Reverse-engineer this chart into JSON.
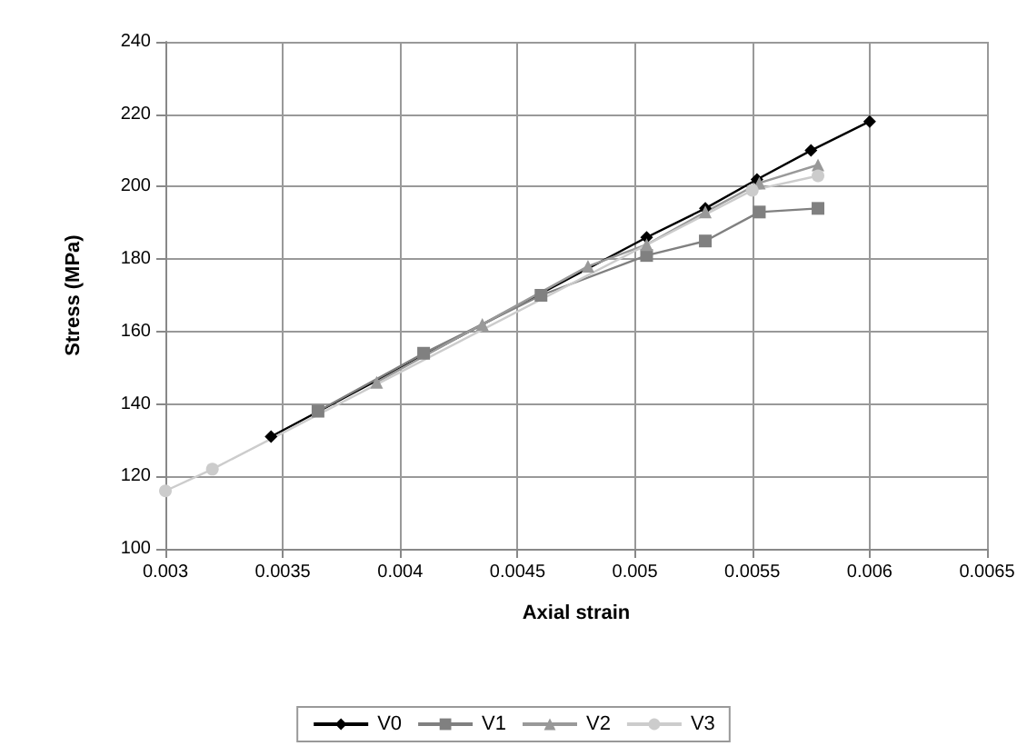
{
  "chart_data": {
    "type": "line",
    "xlabel": "Axial strain",
    "ylabel": "Stress (MPa)",
    "xlim": [
      0.003,
      0.0065
    ],
    "xticks": [
      0.003,
      0.0035,
      0.004,
      0.0045,
      0.005,
      0.0055,
      0.006,
      0.0065
    ],
    "ylim": [
      100,
      240
    ],
    "yticks": [
      100,
      120,
      140,
      160,
      180,
      200,
      220,
      240
    ],
    "grid": true,
    "legend": "bottom",
    "series": [
      {
        "name": "V0",
        "color": "#000000",
        "marker": "diamond",
        "x": [
          0.00345,
          0.00505,
          0.0053,
          0.00552,
          0.00575,
          0.006
        ],
        "values": [
          131,
          186,
          194,
          202,
          210,
          218
        ]
      },
      {
        "name": "V1",
        "color": "#808080",
        "marker": "square",
        "x": [
          0.00365,
          0.0041,
          0.0046,
          0.00505,
          0.0053,
          0.00553,
          0.00578
        ],
        "values": [
          138,
          154,
          170,
          181,
          185,
          193,
          194
        ]
      },
      {
        "name": "V2",
        "color": "#999999",
        "marker": "triangle",
        "x": [
          0.0039,
          0.00435,
          0.0048,
          0.00505,
          0.0053,
          0.00553,
          0.00578
        ],
        "values": [
          146,
          162,
          178,
          184,
          193,
          201,
          206
        ]
      },
      {
        "name": "V3",
        "color": "#cccccc",
        "marker": "circle",
        "x": [
          0.003,
          0.0032,
          0.0055,
          0.00578
        ],
        "values": [
          116,
          122,
          199,
          203
        ]
      }
    ]
  }
}
